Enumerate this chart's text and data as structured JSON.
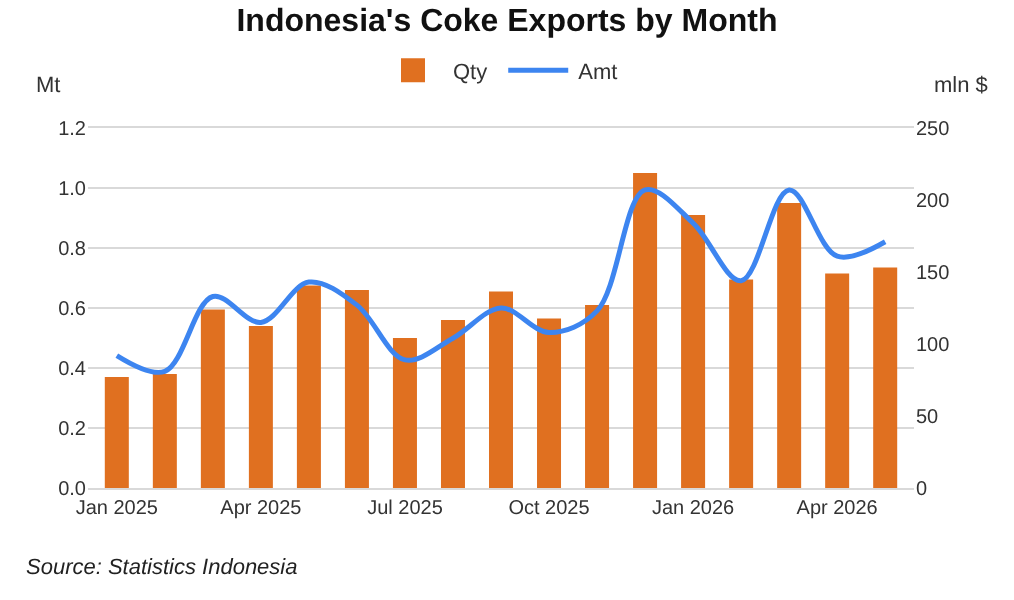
{
  "chart_data": {
    "type": "bar",
    "title": "Indonesia's Coke Exports by Month",
    "ylabel": "Mt",
    "y2label": "mln $",
    "categories": [
      "Jan 2025",
      null,
      null,
      "Apr 2025",
      null,
      null,
      "Jul 2025",
      null,
      null,
      "Oct 2025",
      null,
      null,
      "Jan 2026",
      null,
      null,
      "Apr 2026",
      null
    ],
    "series": [
      {
        "name": "Qty",
        "color": "#e07020",
        "values": [
          0.37,
          0.38,
          0.595,
          0.54,
          0.675,
          0.66,
          0.5,
          0.56,
          0.655,
          0.565,
          0.61,
          1.05,
          0.91,
          0.695,
          0.95,
          0.715,
          0.735
        ]
      },
      {
        "name": "Amt",
        "type": "line",
        "axis": "y2",
        "color": "#3d85f0",
        "values": [
          92,
          81,
          133,
          115,
          143,
          127,
          89,
          104,
          125,
          108,
          123,
          207,
          184,
          144,
          207,
          161,
          171
        ]
      }
    ],
    "ylim": [
      0,
      1.2
    ],
    "yticks": [
      {
        "value": 0,
        "label": "0.0"
      },
      0.2,
      0.4,
      0.6,
      0.8,
      {
        "value": 1,
        "label": "1.0"
      },
      1.2
    ],
    "y2lim": [
      0,
      250
    ],
    "y2ticks": [
      0,
      50,
      100,
      150,
      200,
      250
    ],
    "grid": "y",
    "legend": "top",
    "marker": "none",
    "annotations": [
      "Source: Statistics Indonesia"
    ]
  }
}
